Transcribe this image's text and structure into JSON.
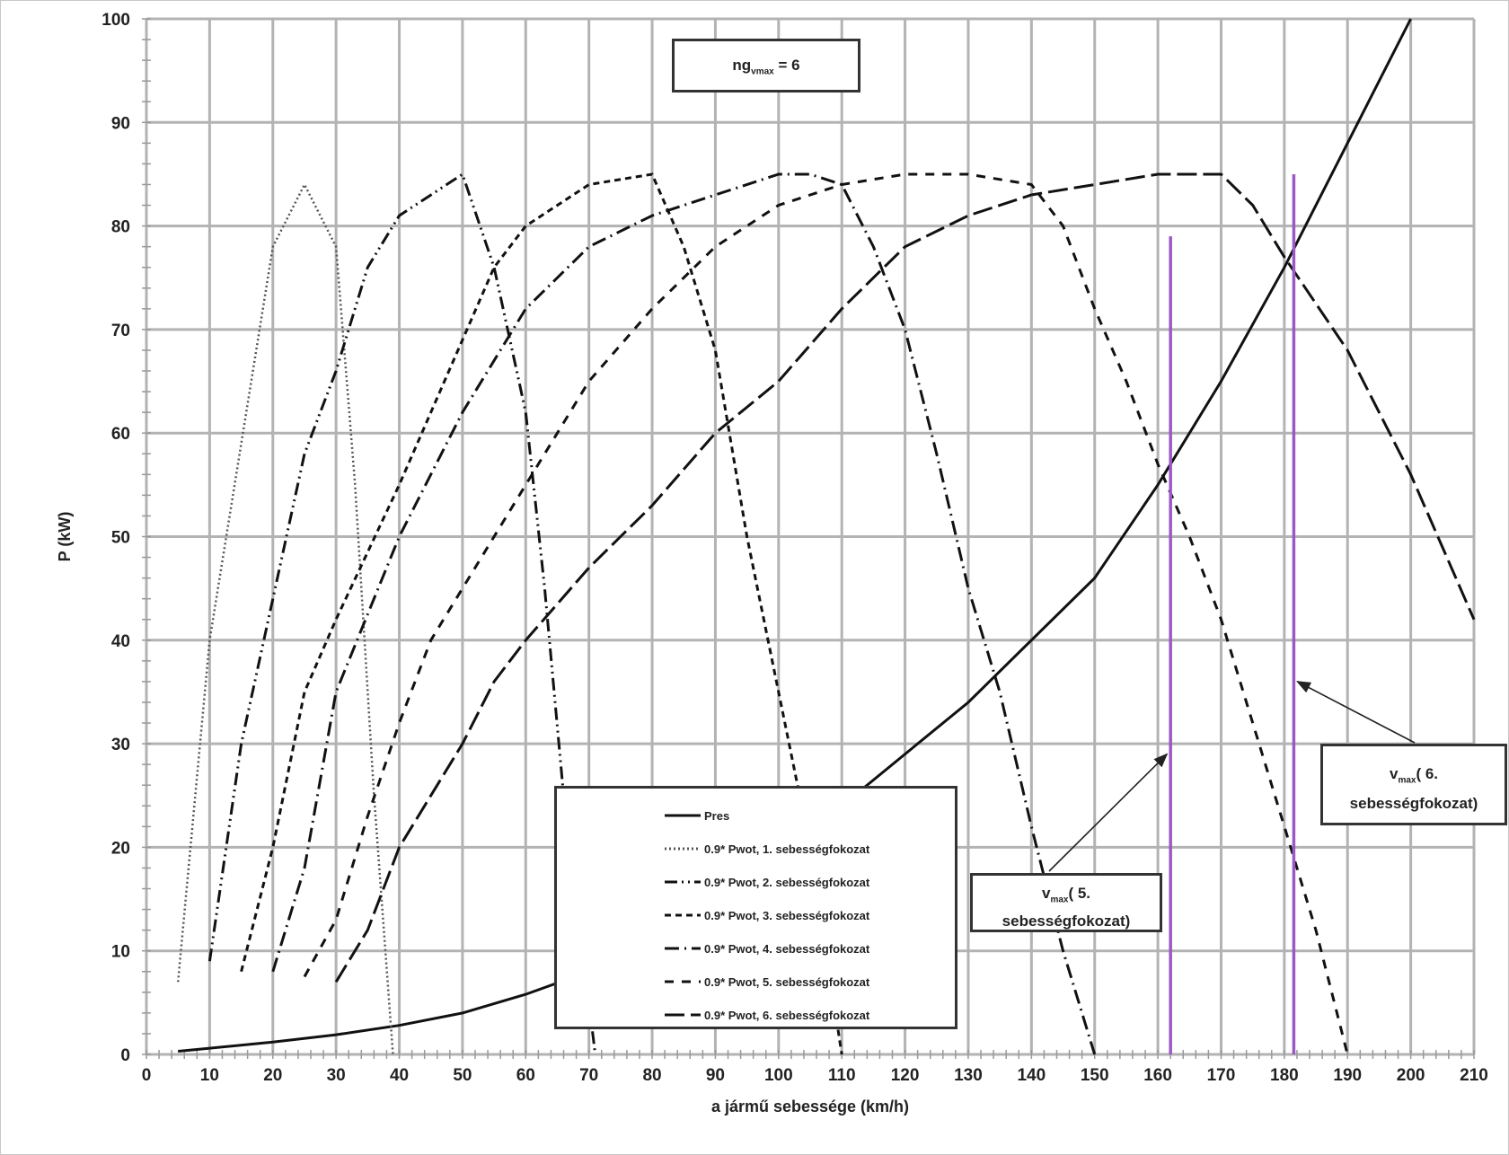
{
  "chart_data": {
    "type": "line",
    "title": "",
    "xlabel": "a jármű sebessége (km/h)",
    "ylabel": "P (kW)",
    "xlim": [
      0,
      210
    ],
    "ylim": [
      0,
      100
    ],
    "grid": true,
    "xticks": [
      0,
      10,
      20,
      30,
      40,
      50,
      60,
      70,
      80,
      90,
      100,
      110,
      120,
      130,
      140,
      150,
      160,
      170,
      180,
      190,
      200,
      210
    ],
    "yticks": [
      0,
      10,
      20,
      30,
      40,
      50,
      60,
      70,
      80,
      90,
      100
    ],
    "legend_position": "bottom-center",
    "series": [
      {
        "name": "Pres",
        "style": "solid",
        "color": "#111111",
        "points": [
          [
            5,
            0.3
          ],
          [
            10,
            0.6
          ],
          [
            20,
            1.2
          ],
          [
            30,
            1.9
          ],
          [
            40,
            2.8
          ],
          [
            50,
            4
          ],
          [
            60,
            5.8
          ],
          [
            70,
            8
          ],
          [
            80,
            11
          ],
          [
            90,
            15
          ],
          [
            100,
            19
          ],
          [
            110,
            24
          ],
          [
            120,
            29
          ],
          [
            130,
            34
          ],
          [
            140,
            40
          ],
          [
            150,
            46
          ],
          [
            160,
            55
          ],
          [
            170,
            65
          ],
          [
            180,
            76
          ],
          [
            190,
            88
          ],
          [
            200,
            100
          ]
        ]
      },
      {
        "name": "0.9* Pwot, 1. sebességfokozat",
        "style": "dotted",
        "color": "#555555",
        "points": [
          [
            5,
            7
          ],
          [
            10,
            40
          ],
          [
            20,
            78
          ],
          [
            25,
            84
          ],
          [
            30,
            78
          ],
          [
            33,
            55
          ],
          [
            36,
            25
          ],
          [
            39,
            0
          ]
        ]
      },
      {
        "name": "0.9* Pwot, 2. sebességfokozat",
        "style": "dash-dot-dot",
        "color": "#111111",
        "points": [
          [
            10,
            9
          ],
          [
            15,
            30
          ],
          [
            20,
            44
          ],
          [
            25,
            58
          ],
          [
            30,
            66
          ],
          [
            35,
            76
          ],
          [
            40,
            81
          ],
          [
            50,
            85
          ],
          [
            55,
            76
          ],
          [
            60,
            62
          ],
          [
            63,
            45
          ],
          [
            66,
            25
          ],
          [
            68,
            15
          ],
          [
            71,
            0
          ]
        ]
      },
      {
        "name": "0.9* Pwot, 3. sebességfokozat",
        "style": "short-dash",
        "color": "#111111",
        "points": [
          [
            15,
            8
          ],
          [
            20,
            20
          ],
          [
            25,
            35
          ],
          [
            30,
            42
          ],
          [
            40,
            55
          ],
          [
            50,
            69
          ],
          [
            55,
            76
          ],
          [
            60,
            80
          ],
          [
            70,
            84
          ],
          [
            80,
            85
          ],
          [
            85,
            78
          ],
          [
            90,
            68
          ],
          [
            95,
            50
          ],
          [
            100,
            35
          ],
          [
            105,
            20
          ],
          [
            110,
            0
          ]
        ]
      },
      {
        "name": "0.9* Pwot, 4. sebességfokozat",
        "style": "dash-dot",
        "color": "#111111",
        "points": [
          [
            20,
            8
          ],
          [
            25,
            18
          ],
          [
            30,
            35
          ],
          [
            40,
            50
          ],
          [
            50,
            62
          ],
          [
            60,
            72
          ],
          [
            70,
            78
          ],
          [
            80,
            81
          ],
          [
            90,
            83
          ],
          [
            100,
            85
          ],
          [
            105,
            85
          ],
          [
            110,
            84
          ],
          [
            115,
            78
          ],
          [
            120,
            70
          ],
          [
            125,
            58
          ],
          [
            130,
            45
          ],
          [
            135,
            35
          ],
          [
            140,
            22
          ],
          [
            145,
            10
          ],
          [
            150,
            0
          ]
        ]
      },
      {
        "name": "0.9* Pwot, 5. sebességfokozat",
        "style": "dash",
        "color": "#111111",
        "points": [
          [
            25,
            7.5
          ],
          [
            30,
            13
          ],
          [
            35,
            23
          ],
          [
            40,
            32
          ],
          [
            45,
            40
          ],
          [
            50,
            45
          ],
          [
            60,
            55
          ],
          [
            70,
            65
          ],
          [
            80,
            72
          ],
          [
            90,
            78
          ],
          [
            100,
            82
          ],
          [
            110,
            84
          ],
          [
            120,
            85
          ],
          [
            130,
            85
          ],
          [
            140,
            84
          ],
          [
            145,
            80
          ],
          [
            150,
            72
          ],
          [
            155,
            65
          ],
          [
            160,
            57
          ],
          [
            165,
            50
          ],
          [
            170,
            42
          ],
          [
            175,
            32
          ],
          [
            180,
            22
          ],
          [
            185,
            12
          ],
          [
            190,
            0
          ]
        ]
      },
      {
        "name": "0.9* Pwot, 6. sebességfokozat",
        "style": "long-dash",
        "color": "#111111",
        "points": [
          [
            30,
            7
          ],
          [
            35,
            12
          ],
          [
            40,
            20
          ],
          [
            50,
            30
          ],
          [
            55,
            36
          ],
          [
            60,
            40
          ],
          [
            70,
            47
          ],
          [
            80,
            53
          ],
          [
            90,
            60
          ],
          [
            100,
            65
          ],
          [
            110,
            72
          ],
          [
            120,
            78
          ],
          [
            130,
            81
          ],
          [
            140,
            83
          ],
          [
            150,
            84
          ],
          [
            160,
            85
          ],
          [
            170,
            85
          ],
          [
            175,
            82
          ],
          [
            180,
            77
          ],
          [
            190,
            68
          ],
          [
            200,
            56
          ],
          [
            210,
            42
          ]
        ]
      }
    ],
    "vertical_markers": [
      {
        "x": 162,
        "y_top": 79,
        "color": "#9b59c6"
      },
      {
        "x": 181.5,
        "y_top": 85,
        "color": "#9b59c6"
      }
    ],
    "annotations": {
      "gear_box": {
        "main": "ng",
        "sub": "vmax",
        "rest": " = 6"
      },
      "vmax5": {
        "main": "v",
        "sub": "max",
        "line1": "( 5.",
        "line2": "sebességfokozat)",
        "arrow_to": [
          162,
          29
        ]
      },
      "vmax6": {
        "main": "v",
        "sub": "max",
        "line1": "( 6.",
        "line2": "sebességfokozat)",
        "arrow_to": [
          181.5,
          36
        ]
      }
    }
  }
}
